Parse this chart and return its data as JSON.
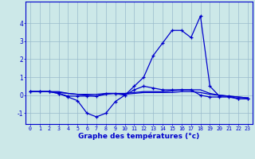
{
  "xlabel": "Graphe des températures (°c)",
  "bg_color": "#cce8e8",
  "grid_color": "#99bbcc",
  "line_color": "#0000cc",
  "hours": [
    0,
    1,
    2,
    3,
    4,
    5,
    6,
    7,
    8,
    9,
    10,
    11,
    12,
    13,
    14,
    15,
    16,
    17,
    18,
    19,
    20,
    21,
    22,
    23
  ],
  "line_main": [
    0.2,
    0.2,
    0.2,
    0.1,
    -0.1,
    -0.3,
    -1.0,
    -1.2,
    -1.0,
    -0.35,
    0.0,
    0.3,
    0.5,
    0.4,
    0.3,
    0.3,
    0.3,
    0.3,
    0.0,
    -0.1,
    -0.1,
    -0.1,
    -0.2,
    -0.2
  ],
  "line_flat1": [
    0.2,
    0.2,
    0.2,
    0.15,
    0.1,
    0.05,
    0.05,
    0.05,
    0.1,
    0.1,
    0.05,
    0.1,
    0.15,
    0.15,
    0.15,
    0.15,
    0.2,
    0.2,
    0.15,
    0.05,
    0.0,
    -0.05,
    -0.1,
    -0.15
  ],
  "line_flat2": [
    0.2,
    0.2,
    0.2,
    0.2,
    0.1,
    0.05,
    0.0,
    -0.05,
    0.05,
    0.1,
    0.1,
    0.15,
    0.2,
    0.2,
    0.2,
    0.25,
    0.3,
    0.3,
    0.3,
    0.1,
    0.0,
    -0.05,
    -0.1,
    -0.15
  ],
  "line_max": [
    0.2,
    0.2,
    0.2,
    0.1,
    -0.05,
    -0.05,
    -0.05,
    -0.05,
    0.1,
    0.1,
    0.0,
    0.5,
    1.0,
    2.2,
    2.9,
    3.6,
    3.6,
    3.2,
    4.4,
    0.5,
    -0.05,
    -0.05,
    -0.2,
    -0.2
  ],
  "ylim": [
    -1.6,
    5.2
  ],
  "yticks": [
    -1,
    0,
    1,
    2,
    3,
    4
  ],
  "xlim": [
    -0.5,
    23.5
  ]
}
